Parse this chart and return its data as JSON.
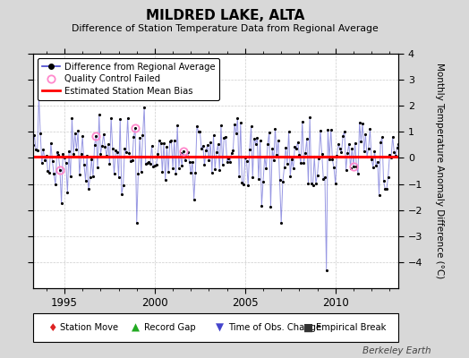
{
  "title": "MILDRED LAKE, ALTA",
  "subtitle": "Difference of Station Temperature Data from Regional Average",
  "ylabel": "Monthly Temperature Anomaly Difference (°C)",
  "xlabel_years": [
    1995,
    2000,
    2005,
    2010
  ],
  "ylim": [
    -5,
    4
  ],
  "yticks": [
    -4,
    -3,
    -2,
    -1,
    0,
    1,
    2,
    3,
    4
  ],
  "bias_value": 0.05,
  "background_color": "#d8d8d8",
  "plot_bg_color": "#ffffff",
  "line_color": "#4444cc",
  "line_alpha": 0.55,
  "bias_color": "#ff0000",
  "qc_color": "#ff88cc",
  "legend_items": [
    "Difference from Regional Average",
    "Quality Control Failed",
    "Estimated Station Mean Bias"
  ],
  "footer": "Berkeley Earth",
  "start_year": 1993.25,
  "end_year": 2013.5,
  "num_months": 244,
  "deep_spike_year": 2009.5,
  "deep_spike_value": -4.3,
  "qc_indices": [
    18,
    42,
    68,
    100,
    213
  ],
  "seed": 42
}
